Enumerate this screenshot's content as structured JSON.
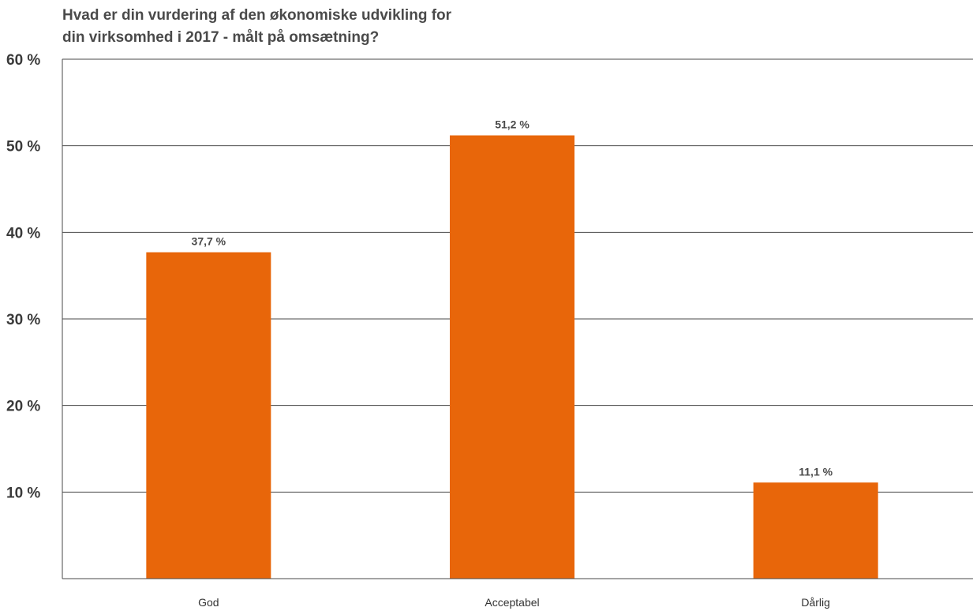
{
  "chart_data": {
    "type": "bar",
    "title_lines": [
      "Hvad er din vurdering af den økonomiske udvikling for",
      "din virksomhed i 2017 - målt på omsætning?"
    ],
    "categories": [
      "God",
      "Acceptabel",
      "Dårlig"
    ],
    "values": [
      37.7,
      51.2,
      11.1
    ],
    "value_labels": [
      "37,7 %",
      "51,2 %",
      "11,1 %"
    ],
    "yticks": [
      10,
      20,
      30,
      40,
      50,
      60
    ],
    "ytick_labels": [
      "10 %",
      "20 %",
      "30 %",
      "40 %",
      "50 %",
      "60 %"
    ],
    "ylim": [
      0,
      60
    ],
    "grid": true,
    "bar_color": "#e8660a",
    "grid_color": "#4a4a4a"
  }
}
